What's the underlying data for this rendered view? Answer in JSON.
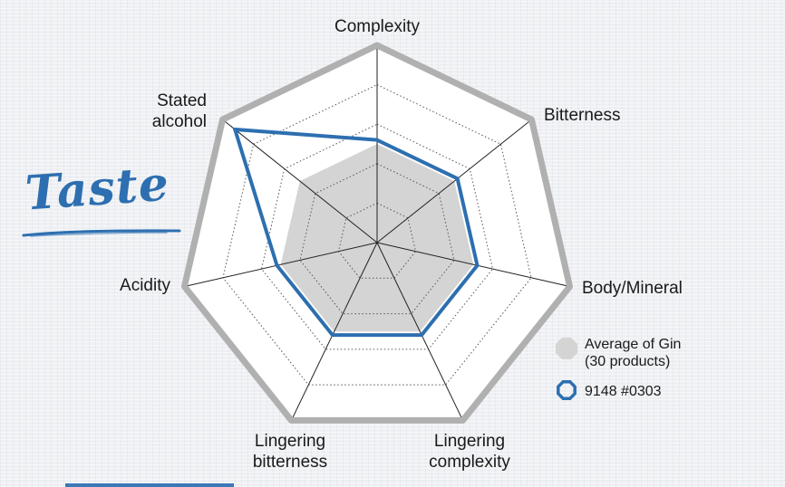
{
  "section_title": "Taste",
  "chart_data": {
    "type": "radar",
    "axes": [
      "Complexity",
      "Bitterness",
      "Body/Mineral",
      "Lingering complexity",
      "Lingering bitterness",
      "Acidity",
      "Stated alcohol"
    ],
    "axis_labels": [
      [
        "Complexity"
      ],
      [
        "Bitterness"
      ],
      [
        "Body/Mineral"
      ],
      [
        "Lingering",
        "complexity"
      ],
      [
        "Lingering",
        "bitterness"
      ],
      [
        "Acidity"
      ],
      [
        "Stated",
        "alcohol"
      ]
    ],
    "range": [
      0,
      5
    ],
    "rings": 5,
    "series": [
      {
        "name": "Average of Gin (30 products)",
        "legend_lines": [
          "Average of Gin",
          "(30 products)"
        ],
        "values": [
          2.5,
          2.5,
          2.5,
          2.5,
          2.5,
          2.5,
          2.5
        ],
        "style": "filled",
        "color": "#d4d4d4"
      },
      {
        "name": "9148 #0303",
        "legend_lines": [
          "9148 #0303"
        ],
        "values": [
          2.6,
          2.6,
          2.6,
          2.6,
          2.6,
          2.6,
          4.6
        ],
        "style": "outline",
        "color": "#2d6fb0"
      }
    ]
  },
  "colors": {
    "outer_frame": "#b0b0b0",
    "spoke": "#222222",
    "ring": "#555555",
    "average_fill": "#d4d4d4",
    "sample_line": "#2d6fb0",
    "title": "#2d6fb0"
  }
}
